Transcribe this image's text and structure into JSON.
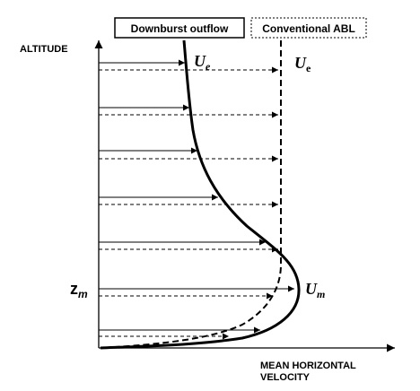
{
  "legend": {
    "downburst": "Downburst outflow",
    "abl": "Conventional ABL"
  },
  "axes": {
    "y": "ALTITUDE",
    "x": [
      "MEAN HORIZONTAL",
      "VELOCITY"
    ]
  },
  "annotations": {
    "ue_downburst": {
      "base": "U",
      "sub": "e"
    },
    "ue_abl": {
      "base": "U",
      "sub": "e"
    },
    "zm": {
      "base": "z",
      "sub": "m"
    },
    "um": {
      "base": "U",
      "sub": "m"
    }
  }
}
